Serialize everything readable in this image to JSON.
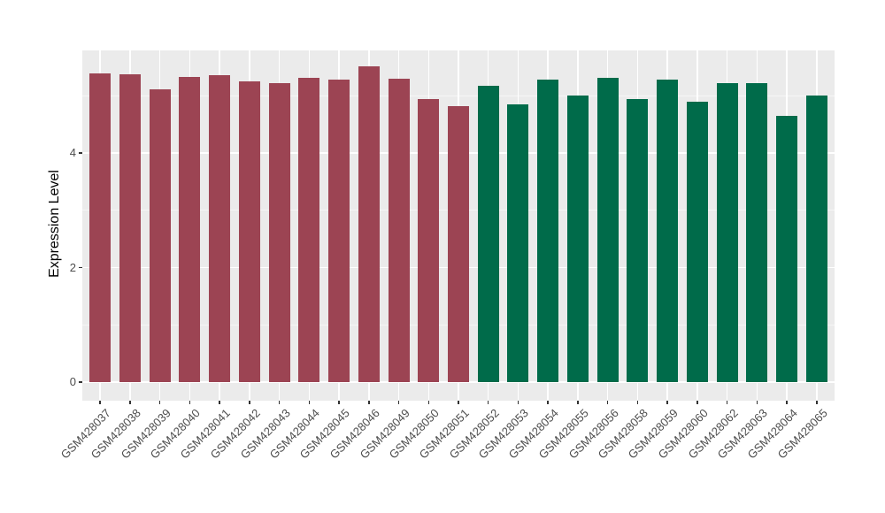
{
  "chart_data": {
    "type": "bar",
    "title": "",
    "xlabel": "",
    "ylabel": "Expression Level",
    "ylim": [
      0,
      5.8
    ],
    "yticks": [
      0,
      2,
      4
    ],
    "yticks_minor": [
      1,
      3,
      5
    ],
    "grid": "on",
    "legend": "none",
    "categories": [
      "GSM428037",
      "GSM428038",
      "GSM428039",
      "GSM428040",
      "GSM428041",
      "GSM428042",
      "GSM428043",
      "GSM428044",
      "GSM428045",
      "GSM428046",
      "GSM428049",
      "GSM428050",
      "GSM428051",
      "GSM428052",
      "GSM428053",
      "GSM428054",
      "GSM428055",
      "GSM428056",
      "GSM428058",
      "GSM428059",
      "GSM428060",
      "GSM428062",
      "GSM428063",
      "GSM428064",
      "GSM428065"
    ],
    "values": [
      5.39,
      5.38,
      5.12,
      5.33,
      5.37,
      5.25,
      5.23,
      5.31,
      5.28,
      5.52,
      5.3,
      4.95,
      4.82,
      5.18,
      4.86,
      5.28,
      5.01,
      5.32,
      4.95,
      5.29,
      4.9,
      5.23,
      5.22,
      4.65,
      5.01
    ],
    "colors": [
      "#9C4453",
      "#9C4453",
      "#9C4453",
      "#9C4453",
      "#9C4453",
      "#9C4453",
      "#9C4453",
      "#9C4453",
      "#9C4453",
      "#9C4453",
      "#9C4453",
      "#9C4453",
      "#9C4453",
      "#006B4A",
      "#006B4A",
      "#006B4A",
      "#006B4A",
      "#006B4A",
      "#006B4A",
      "#006B4A",
      "#006B4A",
      "#006B4A",
      "#006B4A",
      "#006B4A",
      "#006B4A"
    ],
    "group_colors": {
      "left_group": "#9C4453",
      "right_group": "#006B4A"
    }
  },
  "style": {
    "background": "#FFFFFF",
    "panel_bg": "#EBEBEB",
    "grid_major_color": "#FFFFFF",
    "grid_minor_color": "#FFFFFF",
    "tick_color": "#333333",
    "tick_label_color": "#4D4D4D",
    "axis_title_color": "#000000"
  }
}
